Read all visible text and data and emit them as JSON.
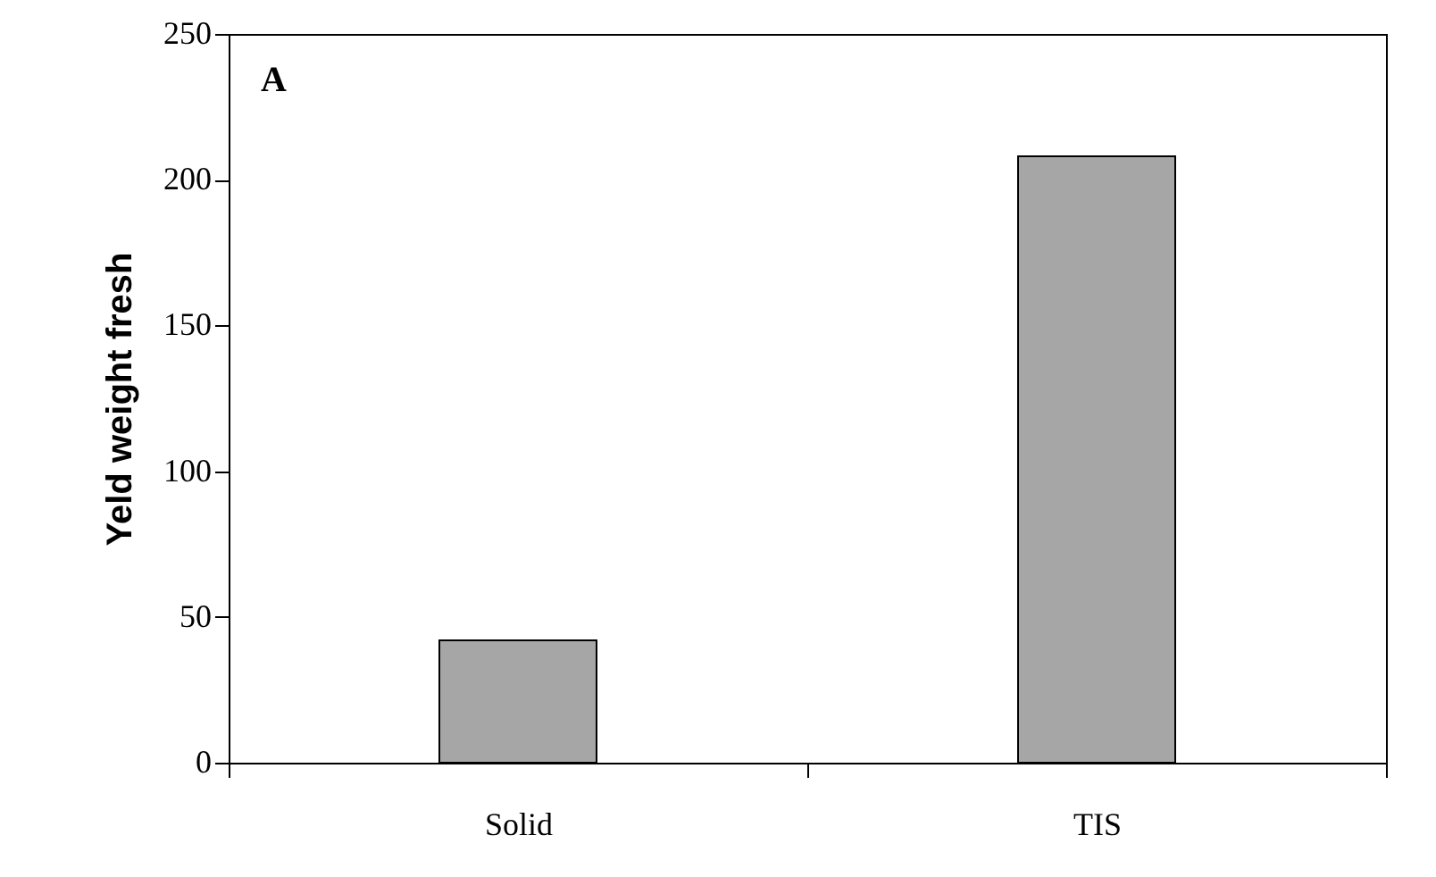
{
  "chart_data": {
    "type": "bar",
    "ylabel": "Yeld  weight fresh",
    "categories": [
      "Solid",
      "TIS"
    ],
    "values": [
      42,
      208
    ],
    "color": "#a6a6a6",
    "ylim": [
      0,
      250
    ],
    "yticks": [
      0,
      50,
      100,
      150,
      200,
      250
    ],
    "grid": false,
    "annotations": [
      "A"
    ]
  }
}
